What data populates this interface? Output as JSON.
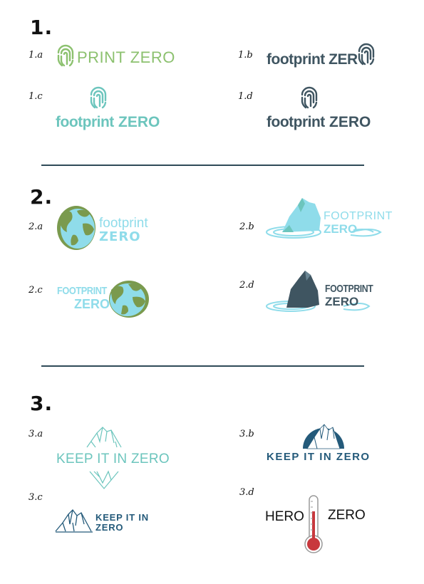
{
  "sections": [
    {
      "number": "1."
    },
    {
      "number": "2."
    },
    {
      "number": "3."
    }
  ],
  "logos": {
    "l1a": {
      "label": "1.a",
      "text": "PRINT ZERO"
    },
    "l1b": {
      "label": "1.b",
      "text": "footprint ZER"
    },
    "l1c": {
      "label": "1.c",
      "line1": "footprint",
      "line2": "ZERO"
    },
    "l1d": {
      "label": "1.d",
      "line1": "footprint",
      "line2": "ZERO"
    },
    "l2a": {
      "label": "2.a",
      "line1": "footprint",
      "line2": "ZERO"
    },
    "l2b": {
      "label": "2.b",
      "line1": "FOOTPRINT",
      "line2": "ZERO"
    },
    "l2c": {
      "label": "2.c",
      "line1": "FOOTPRINT",
      "line2": "ZERO"
    },
    "l2d": {
      "label": "2.d",
      "line1": "FOOTPRINT",
      "line2": "ZERO"
    },
    "l3a": {
      "label": "3.a",
      "text": "KEEP IT IN ZERO"
    },
    "l3b": {
      "label": "3.b",
      "text": "KEEP IT IN ZERO"
    },
    "l3c": {
      "label": "3.c",
      "line1": "KEEP IT IN",
      "line2": "ZERO"
    },
    "l3d": {
      "label": "3.d",
      "left": "HERO",
      "right": "ZERO"
    }
  },
  "colors": {
    "green": "#8cc16f",
    "slate": "#3f5561",
    "teal": "#6cc5bd",
    "sky": "#8fdcea",
    "olive": "#7a9a4e",
    "navy": "#245a7a",
    "red": "#c8383d"
  }
}
